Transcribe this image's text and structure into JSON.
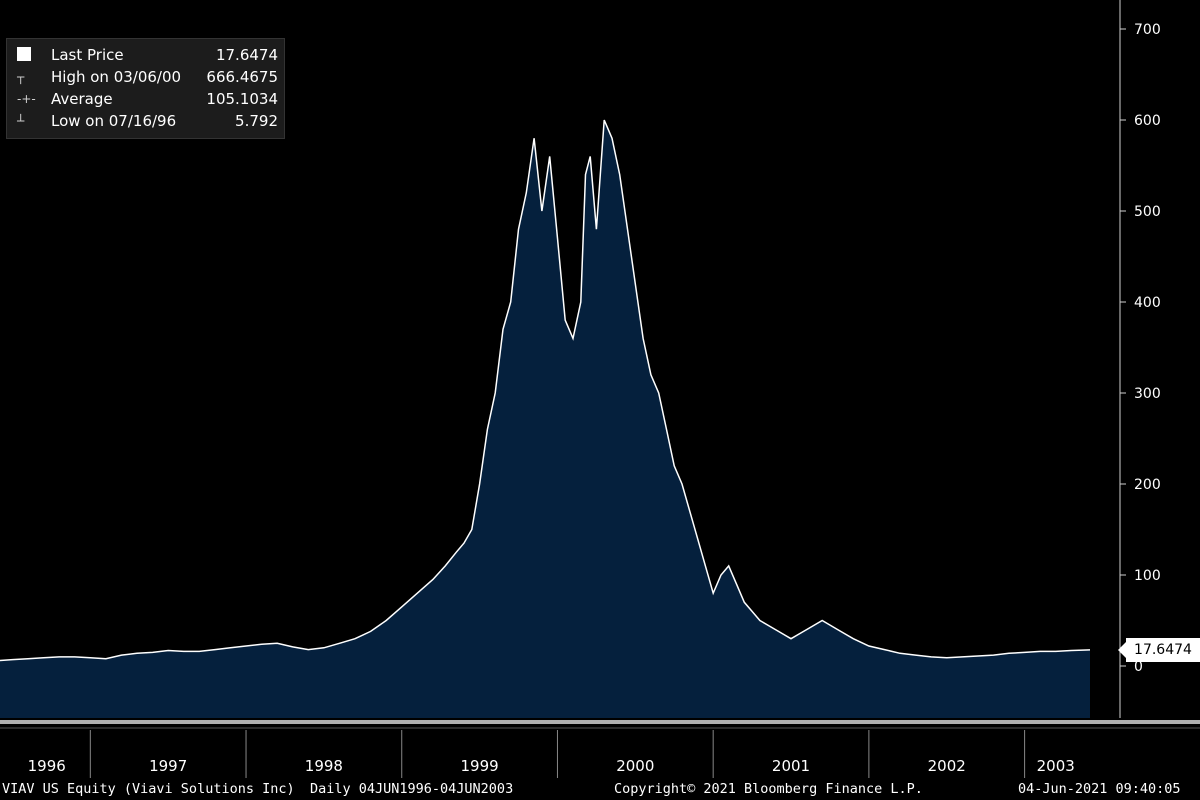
{
  "chart_data": {
    "type": "area",
    "ticker": "VIAV US Equity (Viavi Solutions Inc)",
    "frequency": "Daily",
    "range_label": "04JUN1996-04JUN2003",
    "xlabel": "",
    "ylabel": "",
    "x_tick_labels": [
      "1996",
      "1997",
      "1998",
      "1999",
      "2000",
      "2001",
      "2002",
      "2003"
    ],
    "y_ticks": [
      0,
      100,
      200,
      300,
      400,
      500,
      600,
      700
    ],
    "ylim": [
      -50,
      720
    ],
    "xlim": [
      1996.42,
      2003.42
    ],
    "grid": false,
    "legend_position": "top-left",
    "colors": {
      "area_fill": "#05203d",
      "line": "#ffffff",
      "background": "#000000"
    },
    "series": [
      {
        "name": "Last Price",
        "x": [
          1996.42,
          1996.5,
          1996.6,
          1996.7,
          1996.8,
          1996.9,
          1997.0,
          1997.1,
          1997.2,
          1997.3,
          1997.4,
          1997.5,
          1997.6,
          1997.7,
          1997.8,
          1997.9,
          1998.0,
          1998.1,
          1998.2,
          1998.3,
          1998.4,
          1998.5,
          1998.6,
          1998.7,
          1998.8,
          1998.9,
          1999.0,
          1999.1,
          1999.2,
          1999.28,
          1999.35,
          1999.4,
          1999.45,
          1999.5,
          1999.55,
          1999.6,
          1999.65,
          1999.7,
          1999.75,
          1999.8,
          1999.85,
          1999.9,
          1999.95,
          2000.0,
          2000.05,
          2000.1,
          2000.15,
          2000.18,
          2000.21,
          2000.25,
          2000.3,
          2000.35,
          2000.4,
          2000.45,
          2000.5,
          2000.55,
          2000.6,
          2000.65,
          2000.7,
          2000.75,
          2000.8,
          2000.85,
          2000.9,
          2000.95,
          2001.0,
          2001.05,
          2001.1,
          2001.15,
          2001.2,
          2001.25,
          2001.3,
          2001.4,
          2001.5,
          2001.6,
          2001.7,
          2001.8,
          2001.9,
          2002.0,
          2002.1,
          2002.2,
          2002.3,
          2002.4,
          2002.5,
          2002.6,
          2002.7,
          2002.8,
          2002.9,
          2003.0,
          2003.1,
          2003.2,
          2003.3,
          2003.42
        ],
        "values": [
          6,
          7,
          8,
          9,
          10,
          10,
          9,
          8,
          12,
          14,
          15,
          17,
          16,
          16,
          18,
          20,
          22,
          24,
          25,
          21,
          18,
          20,
          25,
          30,
          38,
          50,
          65,
          80,
          95,
          110,
          125,
          135,
          150,
          200,
          260,
          300,
          370,
          400,
          480,
          520,
          580,
          500,
          560,
          470,
          380,
          360,
          400,
          540,
          560,
          480,
          600,
          580,
          540,
          480,
          420,
          360,
          320,
          300,
          260,
          220,
          200,
          170,
          140,
          110,
          80,
          100,
          110,
          90,
          70,
          60,
          50,
          40,
          30,
          40,
          50,
          40,
          30,
          22,
          18,
          14,
          12,
          10,
          9,
          10,
          11,
          12,
          14,
          15,
          16,
          16,
          17,
          17.6474
        ]
      },
      {
        "name": "High on 03/06/00",
        "value": 666.4675
      },
      {
        "name": "Average",
        "value": 105.1034
      },
      {
        "name": "Low on 07/16/96",
        "value": 5.792
      }
    ]
  },
  "legend": [
    {
      "label": "Last Price",
      "value": "17.6474",
      "symbol": "white-square"
    },
    {
      "label": "High on 03/06/00",
      "value": "666.4675",
      "symbol": "high-marker"
    },
    {
      "label": "Average",
      "value": "105.1034",
      "symbol": "average-marker"
    },
    {
      "label": "Low on 07/16/96",
      "value": "5.792",
      "symbol": "low-marker"
    }
  ],
  "last_price_label": "17.6474",
  "footer": {
    "ticker": "VIAV US Equity (Viavi Solutions Inc)",
    "range": "Daily 04JUN1996-04JUN2003",
    "copyright": "Copyright© 2021 Bloomberg Finance L.P.",
    "timestamp": "04-Jun-2021 09:40:05"
  }
}
